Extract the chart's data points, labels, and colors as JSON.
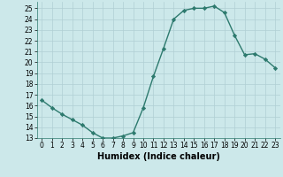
{
  "x": [
    0,
    1,
    2,
    3,
    4,
    5,
    6,
    7,
    8,
    9,
    10,
    11,
    12,
    13,
    14,
    15,
    16,
    17,
    18,
    19,
    20,
    21,
    22,
    23
  ],
  "y": [
    16.5,
    15.8,
    15.2,
    14.7,
    14.2,
    13.5,
    13.0,
    13.0,
    13.2,
    13.5,
    15.8,
    18.7,
    21.3,
    24.0,
    24.8,
    25.0,
    25.0,
    25.2,
    24.6,
    22.5,
    20.7,
    20.8,
    20.3,
    19.5
  ],
  "line_color": "#2d7a6e",
  "marker": "D",
  "markersize": 2.2,
  "linewidth": 1.0,
  "bg_color": "#cce8ea",
  "grid_color": "#b0cfd4",
  "xlabel": "Humidex (Indice chaleur)",
  "xlim": [
    -0.5,
    23.5
  ],
  "ylim": [
    13,
    25.6
  ],
  "xticks": [
    0,
    1,
    2,
    3,
    4,
    5,
    6,
    7,
    8,
    9,
    10,
    11,
    12,
    13,
    14,
    15,
    16,
    17,
    18,
    19,
    20,
    21,
    22,
    23
  ],
  "yticks": [
    13,
    14,
    15,
    16,
    17,
    18,
    19,
    20,
    21,
    22,
    23,
    24,
    25
  ],
  "tick_fontsize": 5.5,
  "label_fontsize": 7.0
}
